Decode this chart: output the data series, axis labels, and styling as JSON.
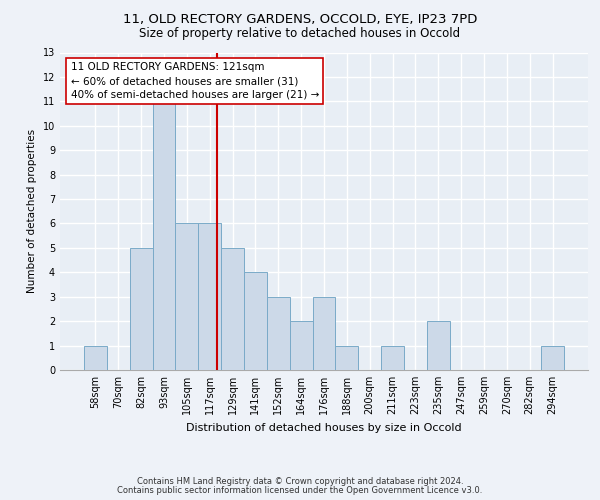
{
  "title1": "11, OLD RECTORY GARDENS, OCCOLD, EYE, IP23 7PD",
  "title2": "Size of property relative to detached houses in Occold",
  "xlabel": "Distribution of detached houses by size in Occold",
  "ylabel": "Number of detached properties",
  "categories": [
    "58sqm",
    "70sqm",
    "82sqm",
    "93sqm",
    "105sqm",
    "117sqm",
    "129sqm",
    "141sqm",
    "152sqm",
    "164sqm",
    "176sqm",
    "188sqm",
    "200sqm",
    "211sqm",
    "223sqm",
    "235sqm",
    "247sqm",
    "259sqm",
    "270sqm",
    "282sqm",
    "294sqm"
  ],
  "values": [
    1,
    0,
    5,
    11,
    6,
    6,
    5,
    4,
    3,
    2,
    3,
    1,
    0,
    1,
    0,
    2,
    0,
    0,
    0,
    0,
    1
  ],
  "bar_color": "#ccd9e8",
  "bar_edgecolor": "#7aaac8",
  "vline_color": "#cc0000",
  "annotation_text": "11 OLD RECTORY GARDENS: 121sqm\n← 60% of detached houses are smaller (31)\n40% of semi-detached houses are larger (21) →",
  "annotation_box_facecolor": "#ffffff",
  "annotation_box_edgecolor": "#cc0000",
  "ylim": [
    0,
    13
  ],
  "yticks": [
    0,
    1,
    2,
    3,
    4,
    5,
    6,
    7,
    8,
    9,
    10,
    11,
    12,
    13
  ],
  "footer1": "Contains HM Land Registry data © Crown copyright and database right 2024.",
  "footer2": "Contains public sector information licensed under the Open Government Licence v3.0.",
  "bg_color": "#e8eef5",
  "grid_color": "#ffffff",
  "title1_fontsize": 9.5,
  "title2_fontsize": 8.5,
  "xlabel_fontsize": 8,
  "ylabel_fontsize": 7.5,
  "tick_fontsize": 7,
  "footer_fontsize": 6,
  "annotation_fontsize": 7.5
}
